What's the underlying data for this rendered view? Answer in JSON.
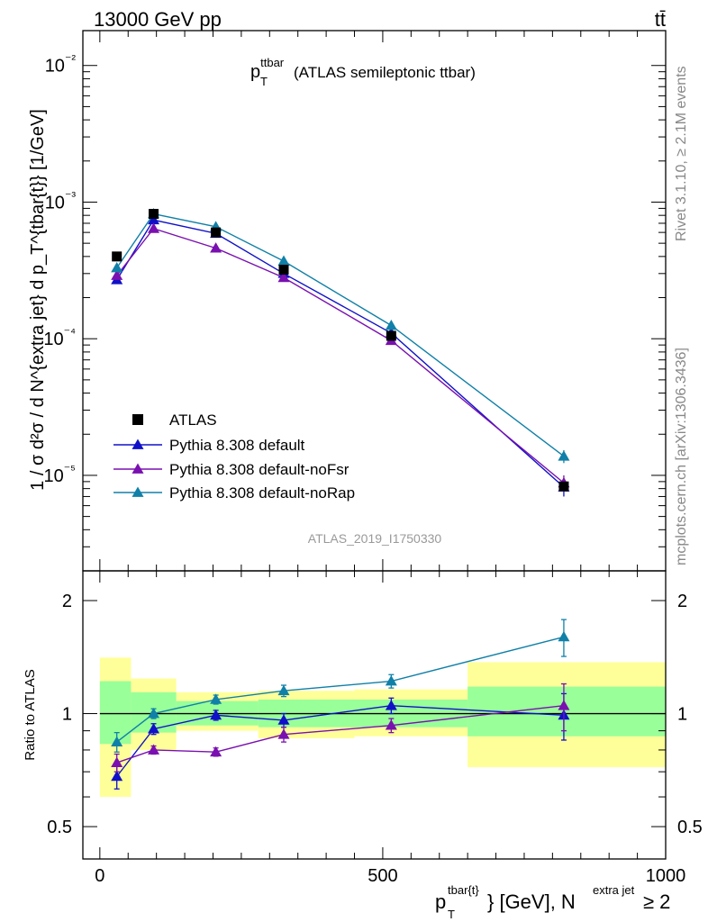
{
  "header": {
    "energy_label": "13000 GeV pp",
    "process_label": "tt̄"
  },
  "side_labels": {
    "rivet": "Rivet 3.1.10, ≥ 2.1M events",
    "source": "mcplots.cern.ch [arXiv:1306.3436]"
  },
  "watermark": "ATLAS_2019_I1750330",
  "colors": {
    "data": "#000000",
    "default": "#1010c8",
    "noFsr": "#7a10b0",
    "noRap": "#1080a8",
    "band_inner": "#99ff99",
    "band_outer": "#ffff99"
  },
  "chart_data": [
    {
      "type": "line",
      "panel": "main",
      "title_main": "p",
      "title_sup": "ttbar",
      "title_sub": "T",
      "title_rest": "(ATLAS semileptonic ttbar)",
      "ylabel": "1 / σ d²σ / d N^{extra jet} d p_T^{tbar{t}} [1/GeV]",
      "yscale": "log",
      "ylim": [
        2e-06,
        0.018
      ],
      "xlim": [
        -30,
        1000
      ],
      "ytick_labels": [
        "10⁻⁵",
        "10⁻⁴",
        "10⁻³",
        "10⁻²"
      ],
      "x": [
        30,
        95,
        205,
        325,
        515,
        820
      ],
      "bins": [
        [
          0,
          60
        ],
        [
          60,
          135
        ],
        [
          135,
          280
        ],
        [
          280,
          450
        ],
        [
          450,
          650
        ],
        [
          650,
          1000
        ]
      ],
      "series": [
        {
          "name": "ATLAS",
          "kind": "data",
          "values": [
            0.0004,
            0.00082,
            0.0006,
            0.00032,
            0.000105,
            8.3e-06
          ],
          "errors": [
            2e-05,
            3e-05,
            2e-05,
            1.2e-05,
            4e-06,
            6e-07
          ]
        },
        {
          "name": "Pythia 8.308 default",
          "kind": "mc",
          "color": "#1010c8",
          "values": [
            0.00027,
            0.00074,
            0.00059,
            0.0003,
            0.00011,
            8.2e-06
          ],
          "errors": [
            1e-05,
            2e-05,
            1e-05,
            1e-05,
            3e-06,
            1.2e-06
          ]
        },
        {
          "name": "Pythia 8.308 default-noFsr",
          "kind": "mc",
          "color": "#7a10b0",
          "values": [
            0.00029,
            0.00064,
            0.00046,
            0.00028,
            9.7e-05,
            8.8e-06
          ],
          "errors": [
            1e-05,
            2e-05,
            1e-05,
            1e-05,
            3e-06,
            1.2e-06
          ]
        },
        {
          "name": "Pythia 8.308 default-noRap",
          "kind": "mc",
          "color": "#1080a8",
          "values": [
            0.00033,
            0.00082,
            0.00066,
            0.00037,
            0.000125,
            1.38e-05
          ],
          "errors": [
            1e-05,
            2e-05,
            1e-05,
            1e-05,
            3e-06,
            1.5e-06
          ]
        }
      ],
      "legend": "lower-left"
    },
    {
      "type": "line",
      "panel": "ratio",
      "ylabel": "Ratio to ATLAS",
      "xlabel_main": "p",
      "xlabel_sup": "tbar{t}",
      "xlabel_sub": "T",
      "xlabel_rest": "} [GeV], N",
      "xlabel_sup2": "extra jet",
      "xlabel_end": " ≥ 2",
      "yscale": "log",
      "ylim": [
        0.41,
        2.4
      ],
      "ytick_labels": [
        "0.5",
        "1",
        "2"
      ],
      "ytick_values": [
        0.5,
        1,
        2
      ],
      "xtick_labels": [
        "0",
        "500",
        "1000"
      ],
      "xtick_values": [
        0,
        500,
        1000
      ],
      "bands": [
        {
          "x0": 0,
          "x1": 55,
          "inner": [
            0.83,
            1.22
          ],
          "outer": [
            0.6,
            1.41
          ]
        },
        {
          "x0": 55,
          "x1": 135,
          "inner": [
            0.89,
            1.14
          ],
          "outer": [
            0.8,
            1.24
          ]
        },
        {
          "x0": 135,
          "x1": 280,
          "inner": [
            0.93,
            1.08
          ],
          "outer": [
            0.9,
            1.14
          ]
        },
        {
          "x0": 280,
          "x1": 450,
          "inner": [
            0.92,
            1.09
          ],
          "outer": [
            0.86,
            1.15
          ]
        },
        {
          "x0": 450,
          "x1": 650,
          "inner": [
            0.92,
            1.09
          ],
          "outer": [
            0.87,
            1.16
          ]
        },
        {
          "x0": 650,
          "x1": 1000,
          "inner": [
            0.87,
            1.18
          ],
          "outer": [
            0.72,
            1.37
          ]
        }
      ],
      "series": [
        {
          "name": "Pythia 8.308 default",
          "color": "#1010c8",
          "values": [
            0.68,
            0.91,
            0.99,
            0.96,
            1.05,
            0.99
          ],
          "errors": [
            0.05,
            0.03,
            0.03,
            0.04,
            0.05,
            0.14
          ]
        },
        {
          "name": "Pythia 8.308 default-noFsr",
          "color": "#7a10b0",
          "values": [
            0.74,
            0.8,
            0.79,
            0.88,
            0.93,
            1.05
          ],
          "errors": [
            0.04,
            0.02,
            0.02,
            0.04,
            0.04,
            0.15
          ]
        },
        {
          "name": "Pythia 8.308 default-noRap",
          "color": "#1080a8",
          "values": [
            0.84,
            1.0,
            1.09,
            1.15,
            1.22,
            1.6
          ],
          "errors": [
            0.05,
            0.03,
            0.03,
            0.04,
            0.05,
            0.18
          ]
        }
      ]
    }
  ]
}
